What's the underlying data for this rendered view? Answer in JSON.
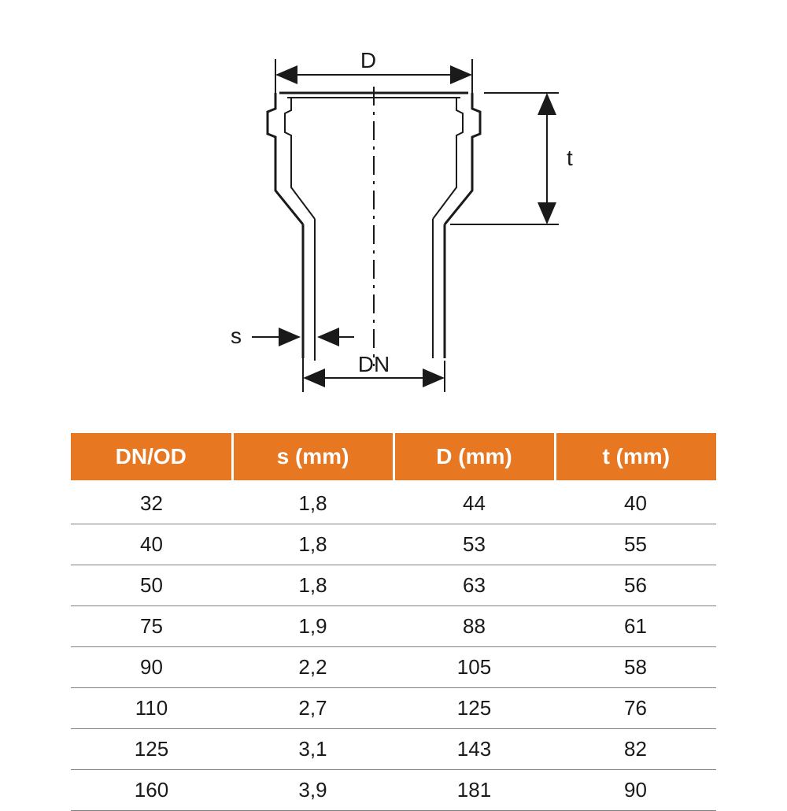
{
  "diagram": {
    "labels": {
      "D": "D",
      "t": "t",
      "s": "s",
      "DN": "DN"
    },
    "stroke_main": "#1a1a1a",
    "stroke_dim": "#1a1a1a",
    "stroke_width_main": 3,
    "stroke_width_thin": 2
  },
  "table": {
    "header_bg": "#e87722",
    "header_fg": "#ffffff",
    "row_border": "#808080",
    "cell_fg": "#1a1a1a",
    "font_size_header": 28,
    "font_size_cell": 26,
    "columns": [
      "DN/OD",
      "s (mm)",
      "D (mm)",
      "t (mm)"
    ],
    "rows": [
      [
        "32",
        "1,8",
        "44",
        "40"
      ],
      [
        "40",
        "1,8",
        "53",
        "55"
      ],
      [
        "50",
        "1,8",
        "63",
        "56"
      ],
      [
        "75",
        "1,9",
        "88",
        "61"
      ],
      [
        "90",
        "2,2",
        "105",
        "58"
      ],
      [
        "110",
        "2,7",
        "125",
        "76"
      ],
      [
        "125",
        "3,1",
        "143",
        "82"
      ],
      [
        "160",
        "3,9",
        "181",
        "90"
      ]
    ]
  }
}
